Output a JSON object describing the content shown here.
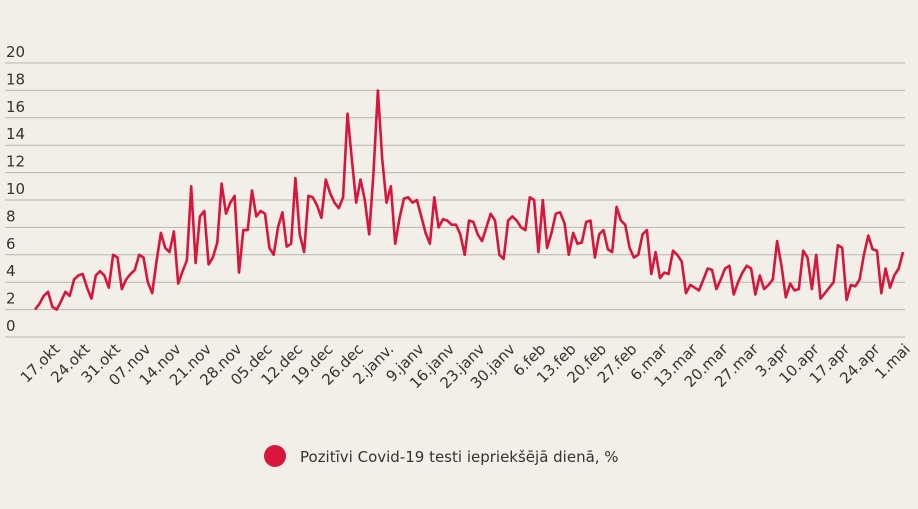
{
  "chart_data": {
    "type": "line",
    "categories": [
      null,
      null,
      null,
      null,
      "17.okt",
      null,
      null,
      null,
      null,
      null,
      null,
      "24.okt",
      null,
      null,
      null,
      null,
      null,
      null,
      "31.okt",
      null,
      null,
      null,
      null,
      null,
      null,
      "07.nov",
      null,
      null,
      null,
      null,
      null,
      null,
      "14.nov",
      null,
      null,
      null,
      null,
      null,
      null,
      "21.nov",
      null,
      null,
      null,
      null,
      null,
      null,
      "28.nov",
      null,
      null,
      null,
      null,
      null,
      null,
      "05.dec",
      null,
      null,
      null,
      null,
      null,
      null,
      "12.dec",
      null,
      null,
      null,
      null,
      null,
      null,
      "19.dec",
      null,
      null,
      null,
      null,
      null,
      null,
      "26.dec",
      null,
      null,
      null,
      null,
      null,
      null,
      "2.janv.",
      null,
      null,
      null,
      null,
      null,
      null,
      "9.janv",
      null,
      null,
      null,
      null,
      null,
      null,
      "16.janv",
      null,
      null,
      null,
      null,
      null,
      null,
      "23.janv",
      null,
      null,
      null,
      null,
      null,
      null,
      "30.janv",
      null,
      null,
      null,
      null,
      null,
      null,
      "6.feb",
      null,
      null,
      null,
      null,
      null,
      null,
      "13.feb",
      null,
      null,
      null,
      null,
      null,
      null,
      "20.feb",
      null,
      null,
      null,
      null,
      null,
      null,
      "27.feb",
      null,
      null,
      null,
      null,
      null,
      null,
      "6.mar",
      null,
      null,
      null,
      null,
      null,
      null,
      "13.mar",
      null,
      null,
      null,
      null,
      null,
      null,
      "20.mar",
      null,
      null,
      null,
      null,
      null,
      null,
      "27.mar",
      null,
      null,
      null,
      null,
      null,
      null,
      "3.apr",
      null,
      null,
      null,
      null,
      null,
      null,
      "10.apr",
      null,
      null,
      null,
      null,
      null,
      null,
      "17.apr",
      null,
      null,
      null,
      null,
      null,
      null,
      "24.apr",
      null,
      null,
      null,
      null,
      null,
      null,
      "1.mai"
    ],
    "series": [
      {
        "name": "Pozitīvi Covid-19 testi iepriekšējā dienā, %",
        "color": "#d8163c",
        "values": [
          2,
          2.4,
          3,
          3.3,
          2.2,
          2.0,
          2.6,
          3.3,
          3.0,
          4.2,
          4.5,
          4.6,
          3.6,
          2.8,
          4.5,
          4.8,
          4.5,
          3.6,
          6.0,
          5.8,
          3.5,
          4.2,
          4.6,
          4.9,
          6.0,
          5.8,
          4.0,
          3.2,
          5.5,
          7.6,
          6.5,
          6.2,
          7.7,
          3.9,
          4.8,
          5.6,
          11.0,
          5.4,
          8.8,
          9.2,
          5.3,
          5.8,
          6.9,
          11.2,
          9.0,
          9.8,
          10.3,
          4.7,
          7.8,
          7.8,
          10.7,
          8.8,
          9.2,
          9.0,
          6.5,
          6.0,
          8.0,
          9.1,
          6.6,
          6.8,
          11.6,
          7.5,
          6.2,
          10.3,
          10.2,
          9.6,
          8.7,
          11.5,
          10.5,
          9.8,
          9.4,
          10.2,
          16.3,
          13.0,
          9.8,
          11.5,
          10.0,
          7.5,
          12.0,
          18.0,
          13.0,
          9.8,
          11.0,
          6.8,
          8.7,
          10.1,
          10.2,
          9.8,
          10.0,
          8.8,
          7.6,
          6.8,
          10.2,
          8.0,
          8.6,
          8.5,
          8.2,
          8.2,
          7.5,
          6.0,
          8.5,
          8.4,
          7.5,
          7.0,
          8.0,
          9.0,
          8.5,
          6.0,
          5.7,
          8.5,
          8.8,
          8.5,
          8.0,
          7.8,
          10.2,
          10.0,
          6.2,
          10.0,
          6.5,
          7.6,
          9.0,
          9.1,
          8.3,
          6.0,
          7.6,
          6.8,
          6.9,
          8.4,
          8.5,
          5.8,
          7.5,
          7.8,
          6.4,
          6.2,
          9.5,
          8.5,
          8.2,
          6.5,
          5.8,
          6.0,
          7.5,
          7.8,
          4.6,
          6.2,
          4.3,
          4.7,
          4.6,
          6.3,
          6.0,
          5.5,
          3.2,
          3.8,
          3.6,
          3.4,
          4.2,
          5.0,
          4.9,
          3.5,
          4.2,
          5.0,
          5.2,
          3.1,
          4.0,
          4.7,
          5.2,
          5.0,
          3.1,
          4.5,
          3.5,
          3.8,
          4.2,
          7.0,
          5.2,
          2.9,
          3.9,
          3.4,
          3.5,
          6.3,
          5.8,
          3.5,
          6.0,
          2.8,
          3.2,
          3.6,
          4.0,
          6.7,
          6.5,
          2.7,
          3.8,
          3.7,
          4.2,
          6.0,
          7.4,
          6.4,
          6.3,
          3.2,
          5.0,
          3.6,
          4.5,
          5.0,
          6.2
        ]
      }
    ],
    "ylim": [
      0,
      20
    ],
    "yticks": [
      0,
      2,
      4,
      6,
      8,
      10,
      12,
      14,
      16,
      18,
      20
    ],
    "grid": true
  }
}
